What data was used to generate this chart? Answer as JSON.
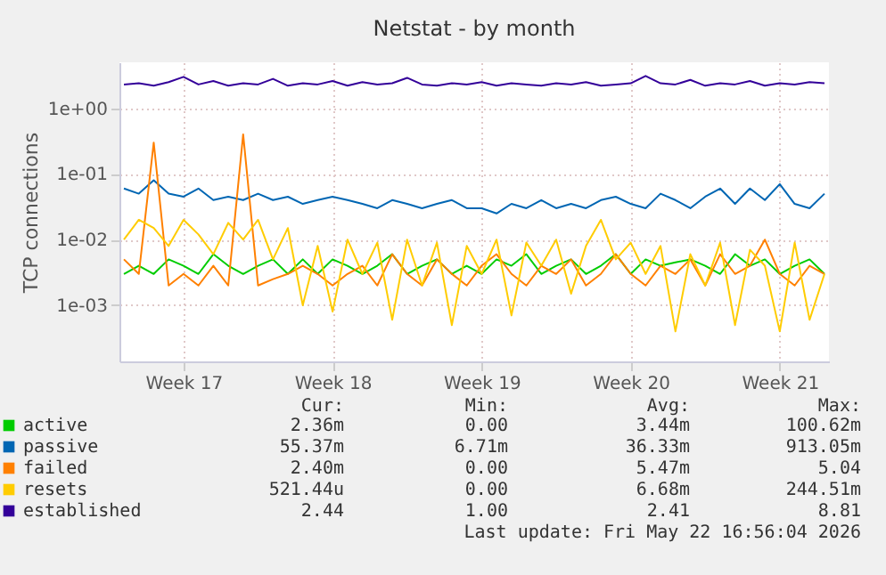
{
  "chart_data": {
    "type": "line",
    "title": "Netstat - by month",
    "ylabel": "TCP connections",
    "categories": [
      null,
      null,
      null,
      null,
      "Week 17",
      null,
      null,
      null,
      null,
      null,
      null,
      null,
      null,
      null,
      "Week 18",
      null,
      null,
      null,
      null,
      null,
      null,
      null,
      null,
      null,
      "Week 19",
      null,
      null,
      null,
      null,
      null,
      null,
      null,
      null,
      null,
      "Week 20",
      null,
      null,
      null,
      null,
      null,
      null,
      null,
      null,
      null,
      "Week 21",
      null,
      null,
      null
    ],
    "series": [
      {
        "name": "active",
        "color": "#00cc00",
        "values": [
          0.003,
          0.004,
          0.003,
          0.005,
          0.004,
          0.003,
          0.006,
          0.004,
          0.003,
          0.004,
          0.005,
          0.003,
          0.005,
          0.003,
          0.005,
          0.004,
          0.003,
          0.004,
          0.006,
          0.003,
          0.004,
          0.005,
          0.003,
          0.004,
          0.003,
          0.005,
          0.004,
          0.006,
          0.003,
          0.004,
          0.005,
          0.003,
          0.004,
          0.006,
          0.003,
          0.005,
          0.004,
          0.0045,
          0.005,
          0.004,
          0.003,
          0.006,
          0.004,
          0.005,
          0.003,
          0.004,
          0.005,
          0.003
        ]
      },
      {
        "name": "passive",
        "color": "#0066b3",
        "values": [
          0.06,
          0.05,
          0.08,
          0.05,
          0.045,
          0.06,
          0.04,
          0.045,
          0.04,
          0.05,
          0.04,
          0.045,
          0.035,
          0.04,
          0.045,
          0.04,
          0.035,
          0.03,
          0.04,
          0.035,
          0.03,
          0.035,
          0.04,
          0.03,
          0.03,
          0.025,
          0.035,
          0.03,
          0.04,
          0.03,
          0.035,
          0.03,
          0.04,
          0.045,
          0.035,
          0.03,
          0.05,
          0.04,
          0.03,
          0.045,
          0.06,
          0.035,
          0.06,
          0.04,
          0.07,
          0.035,
          0.03,
          0.05
        ]
      },
      {
        "name": "failed",
        "color": "#ff8000",
        "values": [
          0.005,
          0.003,
          0.3,
          0.002,
          0.003,
          0.002,
          0.004,
          0.002,
          0.4,
          0.002,
          0.0025,
          0.003,
          0.004,
          0.003,
          0.002,
          0.003,
          0.004,
          0.002,
          0.006,
          0.003,
          0.002,
          0.005,
          0.003,
          0.002,
          0.004,
          0.006,
          0.003,
          0.002,
          0.004,
          0.003,
          0.005,
          0.002,
          0.003,
          0.006,
          0.003,
          0.002,
          0.004,
          0.003,
          0.005,
          0.002,
          0.006,
          0.003,
          0.004,
          0.01,
          0.003,
          0.002,
          0.004,
          0.003
        ]
      },
      {
        "name": "resets",
        "color": "#ffcc00",
        "values": [
          0.01,
          0.02,
          0.015,
          0.008,
          0.02,
          0.012,
          0.006,
          0.018,
          0.01,
          0.02,
          0.005,
          0.015,
          0.001,
          0.008,
          0.0008,
          0.01,
          0.003,
          0.009,
          0.0006,
          0.01,
          0.002,
          0.009,
          0.0005,
          0.008,
          0.003,
          0.01,
          0.0007,
          0.009,
          0.004,
          0.01,
          0.0015,
          0.008,
          0.02,
          0.005,
          0.009,
          0.003,
          0.008,
          0.0004,
          0.006,
          0.002,
          0.009,
          0.0005,
          0.007,
          0.004,
          0.0004,
          0.009,
          0.0006,
          0.003
        ]
      },
      {
        "name": "established",
        "color": "#330099",
        "values": [
          2.3,
          2.4,
          2.2,
          2.5,
          3.0,
          2.3,
          2.6,
          2.2,
          2.4,
          2.3,
          2.8,
          2.2,
          2.4,
          2.3,
          2.6,
          2.2,
          2.5,
          2.3,
          2.4,
          2.9,
          2.3,
          2.2,
          2.4,
          2.3,
          2.5,
          2.2,
          2.4,
          2.3,
          2.2,
          2.4,
          2.3,
          2.5,
          2.2,
          2.3,
          2.4,
          3.1,
          2.4,
          2.3,
          2.7,
          2.2,
          2.4,
          2.3,
          2.6,
          2.2,
          2.4,
          2.3,
          2.5,
          2.4
        ]
      }
    ],
    "log": "y",
    "ylim": [
      0.00014,
      5
    ],
    "yticks": [
      {
        "value": 1,
        "label": "1e+00"
      },
      {
        "value": 0.1,
        "label": "1e-01"
      },
      {
        "value": 0.01,
        "label": "1e-02"
      },
      {
        "value": 0.001,
        "label": "1e-03"
      }
    ],
    "grid": true,
    "legend": "bottom left",
    "line_style": "solid",
    "marker": "none",
    "annotations": [
      "Cur:",
      "Min:",
      "Avg:",
      "Max:",
      "2.36m",
      "0.00",
      "3.44m",
      "100.62m",
      "55.37m",
      "6.71m",
      "36.33m",
      "913.05m",
      "2.40m",
      "0.00",
      "5.47m",
      "5.04",
      "521.44u",
      "0.00",
      "6.68m",
      "244.51m",
      "2.44",
      "1.00",
      "2.41",
      "8.81",
      "Last update: Fri May 22 16:56:04 2026"
    ]
  }
}
